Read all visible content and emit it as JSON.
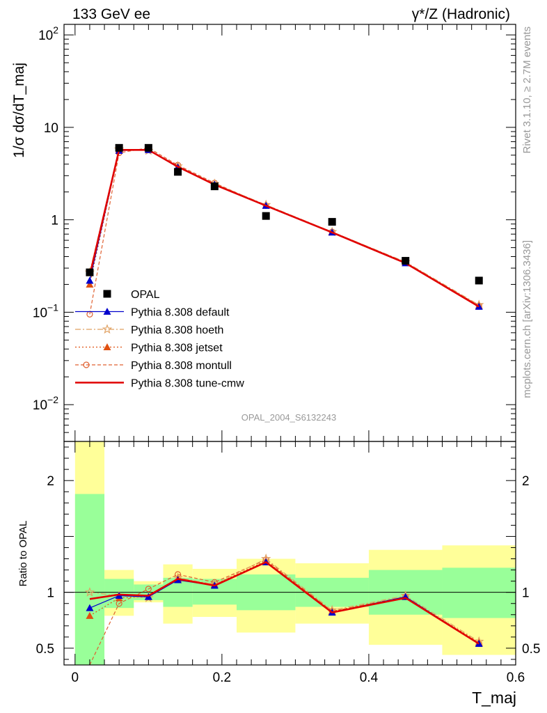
{
  "header": {
    "left_label": "133 GeV ee",
    "right_label": "γ*/Z (Hadronic)",
    "side_top": "Rivet 3.1.10, ≥ 2.7M events",
    "side_bottom": "mcplots.cern.ch [arXiv:1306.3436]",
    "analysis_id": "OPAL_2004_S6132243"
  },
  "colors": {
    "data": "#000000",
    "default": "#0000cc",
    "hoeth": "#e0a060",
    "jetset": "#e05010",
    "montull": "#e06030",
    "tune_cmw": "#e00000",
    "band_inner": "#99ff99",
    "band_outer": "#ffff99"
  },
  "chart_data": [
    {
      "type": "scatter",
      "panel": "main",
      "ylabel": "1/σ dσ/dT_maj",
      "yscale": "log",
      "ylim": [
        0.004,
        130
      ],
      "xlim": [
        -0.015,
        0.6
      ],
      "y_ticks": [
        {
          "value": 0.01,
          "label": "10",
          "exp": "−2"
        },
        {
          "value": 0.1,
          "label": "10",
          "exp": "−1"
        },
        {
          "value": 1,
          "label": "1",
          "exp": ""
        },
        {
          "value": 10,
          "label": "10",
          "exp": ""
        },
        {
          "value": 100,
          "label": "10",
          "exp": "2"
        }
      ],
      "legend": {
        "placement": "bottom-left",
        "entries": [
          {
            "key": "data",
            "label": "OPAL"
          },
          {
            "key": "default",
            "label": "Pythia 8.308 default"
          },
          {
            "key": "hoeth",
            "label": "Pythia 8.308 hoeth"
          },
          {
            "key": "jetset",
            "label": "Pythia 8.308 jetset"
          },
          {
            "key": "montull",
            "label": "Pythia 8.308 montull"
          },
          {
            "key": "tune_cmw",
            "label": "Pythia 8.308 tune-cmw"
          }
        ]
      },
      "x": [
        0.02,
        0.06,
        0.1,
        0.14,
        0.19,
        0.26,
        0.35,
        0.45,
        0.55
      ],
      "data_values": [
        0.27,
        6.0,
        6.0,
        3.3,
        2.3,
        1.1,
        0.95,
        0.36,
        0.22
      ],
      "series": [
        {
          "key": "default",
          "values": [
            0.22,
            5.6,
            5.7,
            3.7,
            2.4,
            1.42,
            0.73,
            0.34,
            0.115
          ]
        },
        {
          "key": "hoeth",
          "values": [
            0.27,
            5.8,
            5.6,
            3.8,
            2.45,
            1.45,
            0.74,
            0.35,
            0.12
          ]
        },
        {
          "key": "jetset",
          "values": [
            0.2,
            5.7,
            5.7,
            3.75,
            2.45,
            1.43,
            0.74,
            0.345,
            0.118
          ]
        },
        {
          "key": "montull",
          "values": [
            0.095,
            5.3,
            6.0,
            3.9,
            2.5,
            1.42,
            0.74,
            0.345,
            0.117
          ]
        },
        {
          "key": "tune_cmw",
          "values": [
            0.25,
            5.7,
            5.7,
            3.75,
            2.4,
            1.42,
            0.73,
            0.34,
            0.115
          ]
        }
      ]
    },
    {
      "type": "line",
      "panel": "ratio",
      "xlabel": "T_maj",
      "ylabel": "Ratio to OPAL",
      "ylim": [
        0.35,
        2.35
      ],
      "y_ticks": [
        0.5,
        1,
        2
      ],
      "x_ticks": [
        {
          "value": 0,
          "label": "0"
        },
        {
          "value": 0.2,
          "label": "0.2"
        },
        {
          "value": 0.4,
          "label": "0.4"
        },
        {
          "value": 0.6,
          "label": "0.6"
        }
      ],
      "bins": [
        {
          "lo": 0.0,
          "hi": 0.04,
          "inner": [
            0.35,
            1.88
          ],
          "outer": [
            0.35,
            2.35
          ]
        },
        {
          "lo": 0.04,
          "hi": 0.08,
          "inner": [
            0.86,
            1.12
          ],
          "outer": [
            0.79,
            1.2
          ]
        },
        {
          "lo": 0.08,
          "hi": 0.12,
          "inner": [
            0.93,
            1.07
          ],
          "outer": [
            0.91,
            1.1
          ]
        },
        {
          "lo": 0.12,
          "hi": 0.16,
          "inner": [
            0.87,
            1.13
          ],
          "outer": [
            0.72,
            1.25
          ]
        },
        {
          "lo": 0.16,
          "hi": 0.22,
          "inner": [
            0.89,
            1.12
          ],
          "outer": [
            0.78,
            1.21
          ]
        },
        {
          "lo": 0.22,
          "hi": 0.3,
          "inner": [
            0.84,
            1.16
          ],
          "outer": [
            0.64,
            1.3
          ]
        },
        {
          "lo": 0.3,
          "hi": 0.4,
          "inner": [
            0.87,
            1.13
          ],
          "outer": [
            0.72,
            1.26
          ]
        },
        {
          "lo": 0.4,
          "hi": 0.5,
          "inner": [
            0.8,
            1.2
          ],
          "outer": [
            0.53,
            1.38
          ]
        },
        {
          "lo": 0.5,
          "hi": 0.6,
          "inner": [
            0.77,
            1.22
          ],
          "outer": [
            0.44,
            1.42
          ]
        }
      ],
      "x": [
        0.02,
        0.06,
        0.1,
        0.14,
        0.19,
        0.26,
        0.35,
        0.45,
        0.55
      ],
      "series": [
        {
          "key": "default",
          "values": [
            0.86,
            0.97,
            0.96,
            1.11,
            1.06,
            1.27,
            0.82,
            0.96,
            0.54
          ]
        },
        {
          "key": "hoeth",
          "values": [
            1.0,
            0.97,
            0.95,
            1.13,
            1.07,
            1.3,
            0.84,
            0.97,
            0.56
          ]
        },
        {
          "key": "jetset",
          "values": [
            0.79,
            0.95,
            0.96,
            1.12,
            1.07,
            1.28,
            0.83,
            0.96,
            0.55
          ]
        },
        {
          "key": "montull",
          "values": [
            0.35,
            0.9,
            1.03,
            1.16,
            1.09,
            1.29,
            0.83,
            0.96,
            0.54
          ]
        },
        {
          "key": "tune_cmw",
          "values": [
            0.94,
            0.98,
            0.97,
            1.12,
            1.06,
            1.27,
            0.82,
            0.95,
            0.54
          ]
        }
      ]
    }
  ]
}
